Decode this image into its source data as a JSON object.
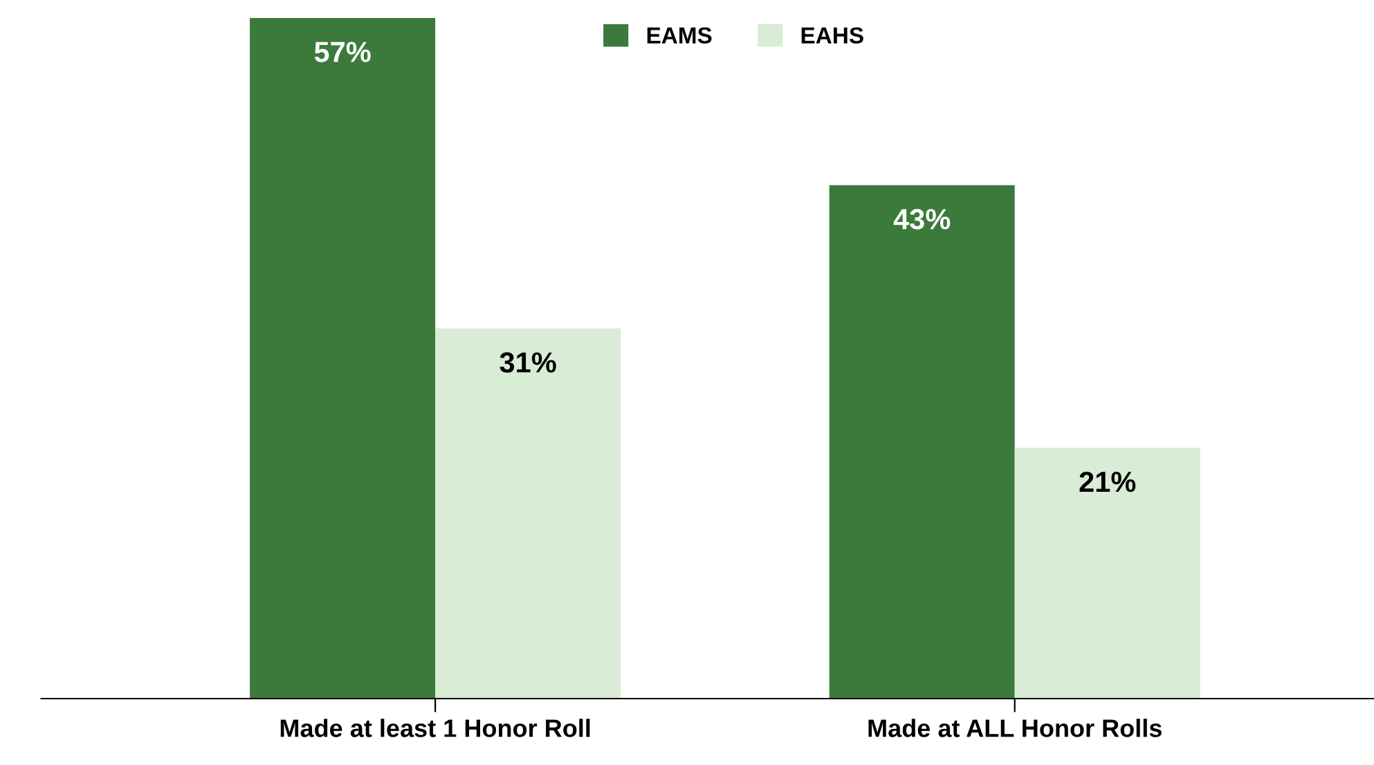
{
  "chart_data": {
    "type": "bar",
    "categories": [
      "Made at least 1 Honor Roll",
      "Made at ALL Honor Rolls"
    ],
    "series": [
      {
        "name": "EAMS",
        "color": "#3b7a3b",
        "values": [
          57,
          43
        ],
        "value_labels": [
          "57%",
          "43%"
        ]
      },
      {
        "name": "EAHS",
        "color": "#d9ecd5",
        "values": [
          31,
          21
        ],
        "value_labels": [
          "31%",
          "21%"
        ]
      }
    ],
    "legend": "top",
    "grid": false,
    "tick_labels": "x"
  }
}
